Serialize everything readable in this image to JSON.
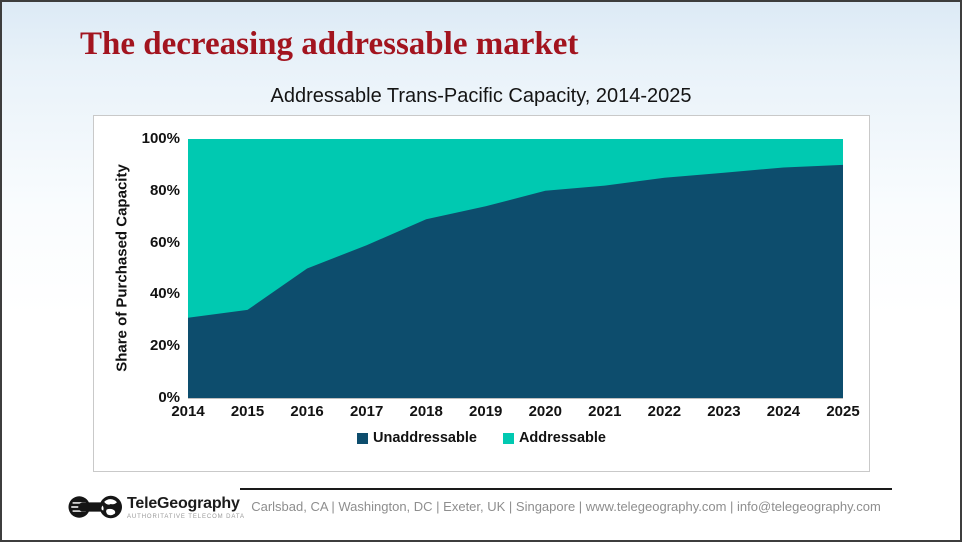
{
  "slide": {
    "title": "The decreasing addressable market",
    "accent_color": "#a2141f"
  },
  "logo": {
    "name": "TeleGeography",
    "tagline": "AUTHORITATIVE TELECOM DATA"
  },
  "footer": {
    "contact": "Carlsbad, CA | Washington, DC | Exeter, UK | Singapore | www.telegeography.com | info@telegeography.com"
  },
  "chart_data": {
    "type": "area",
    "stacked": true,
    "title": "Addressable Trans-Pacific Capacity, 2014-2025",
    "xlabel": "",
    "ylabel": "Share of Purchased Capacity",
    "categories": [
      "2014",
      "2015",
      "2016",
      "2017",
      "2018",
      "2019",
      "2020",
      "2021",
      "2022",
      "2023",
      "2024",
      "2025"
    ],
    "series": [
      {
        "name": "Unaddressable",
        "color": "#0d4d6d",
        "values": [
          31,
          34,
          50,
          59,
          69,
          74,
          80,
          82,
          85,
          87,
          89,
          90
        ]
      },
      {
        "name": "Addressable",
        "color": "#00c9b1",
        "values": [
          69,
          66,
          50,
          41,
          31,
          26,
          20,
          18,
          15,
          13,
          11,
          10
        ]
      }
    ],
    "ylim": [
      0,
      100
    ],
    "yticks": [
      0,
      20,
      40,
      60,
      80,
      100
    ],
    "ytick_suffix": "%",
    "grid": false,
    "legend_position": "bottom"
  }
}
